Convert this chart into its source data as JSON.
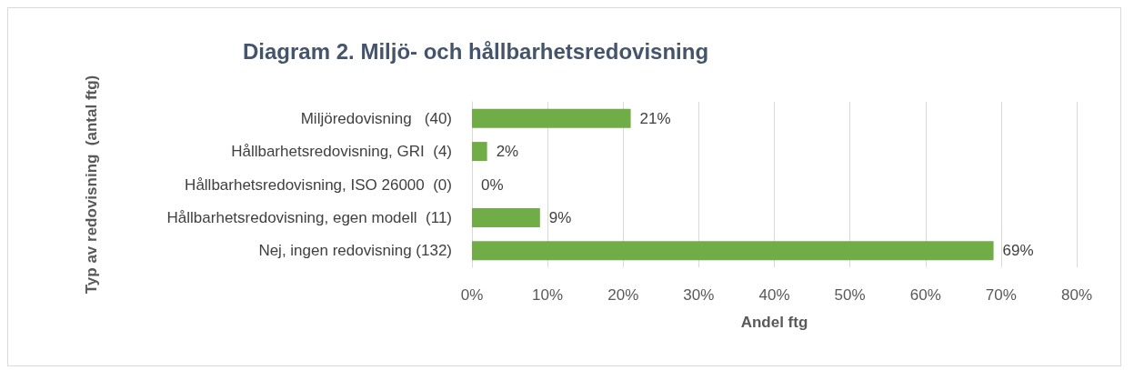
{
  "chart_data": {
    "type": "bar",
    "orientation": "horizontal",
    "title": "Diagram 2. Miljö- och hållbarhetsredovisning",
    "xlabel": "Andel ftg",
    "ylabel": "Typ av redovisning  (antal ftg)",
    "categories": [
      "Miljöredovisning   (40)",
      "Hållbarhetsredovisning, GRI  (4)",
      "Hållbarhetsredovisning, ISO 26000  (0)",
      "Hållbarhetsredovisning, egen modell  (11)",
      "Nej, ingen redovisning (132)"
    ],
    "values": [
      21,
      2,
      0,
      9,
      69
    ],
    "value_labels": [
      "21%",
      "2%",
      "0%",
      "9%",
      "69%"
    ],
    "color": "#70ad47",
    "xlim": [
      0,
      80
    ],
    "xticks": [
      {
        "value": 0,
        "label": "0%"
      },
      {
        "value": 10,
        "label": "10%"
      },
      {
        "value": 20,
        "label": "20%"
      },
      {
        "value": 30,
        "label": "30%"
      },
      {
        "value": 40,
        "label": "40%"
      },
      {
        "value": 50,
        "label": "50%"
      },
      {
        "value": 60,
        "label": "60%"
      },
      {
        "value": 70,
        "label": "70%"
      },
      {
        "value": 80,
        "label": "80%"
      }
    ],
    "grid": "x"
  }
}
